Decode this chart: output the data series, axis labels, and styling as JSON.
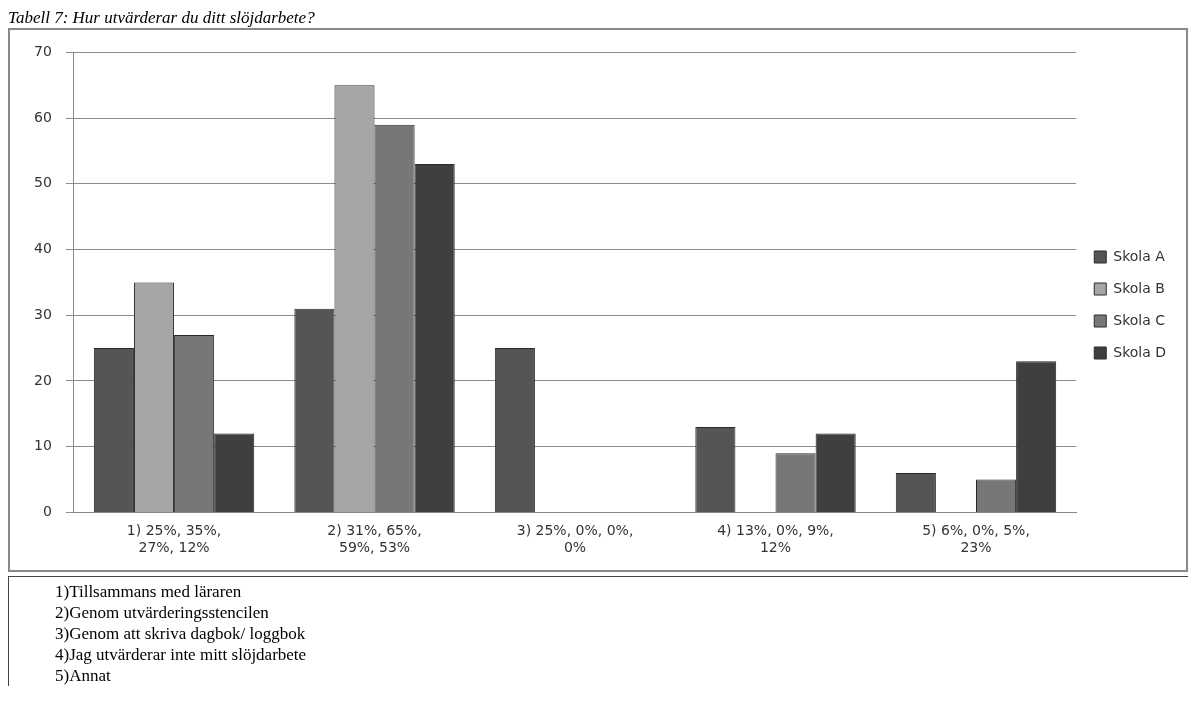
{
  "chart_data": {
    "type": "bar",
    "title": "Tabell 7: Hur utvärderar du ditt slöjdarbete?",
    "categories": [
      "1) 25%, 35%, 27%, 12%",
      "2) 31%, 65%, 59%, 53%",
      "3) 25%, 0%, 0%, 0%",
      "4) 13%, 0%, 9%, 12%",
      "5) 6%, 0%, 5%, 23%"
    ],
    "series": [
      {
        "name": "Skola A",
        "color": "#555555",
        "values": [
          25,
          31,
          25,
          13,
          6
        ]
      },
      {
        "name": "Skola B",
        "color": "#a6a6a6",
        "values": [
          35,
          65,
          0,
          0,
          0
        ]
      },
      {
        "name": "Skola C",
        "color": "#777777",
        "values": [
          27,
          59,
          0,
          9,
          5
        ]
      },
      {
        "name": "Skola D",
        "color": "#3f3f3f",
        "values": [
          12,
          53,
          0,
          12,
          23
        ]
      }
    ],
    "ylim": [
      0,
      70
    ],
    "yticks": [
      0,
      10,
      20,
      30,
      40,
      50,
      60,
      70
    ],
    "grid": "y",
    "legend": "right",
    "annotations": [
      "1)Tillsammans med läraren",
      "2)Genom utvärderingsstencilen",
      "3)Genom att skriva dagbok/ loggbok",
      "4)Jag utvärderar inte mitt slöjdarbete",
      "5)Annat"
    ]
  }
}
